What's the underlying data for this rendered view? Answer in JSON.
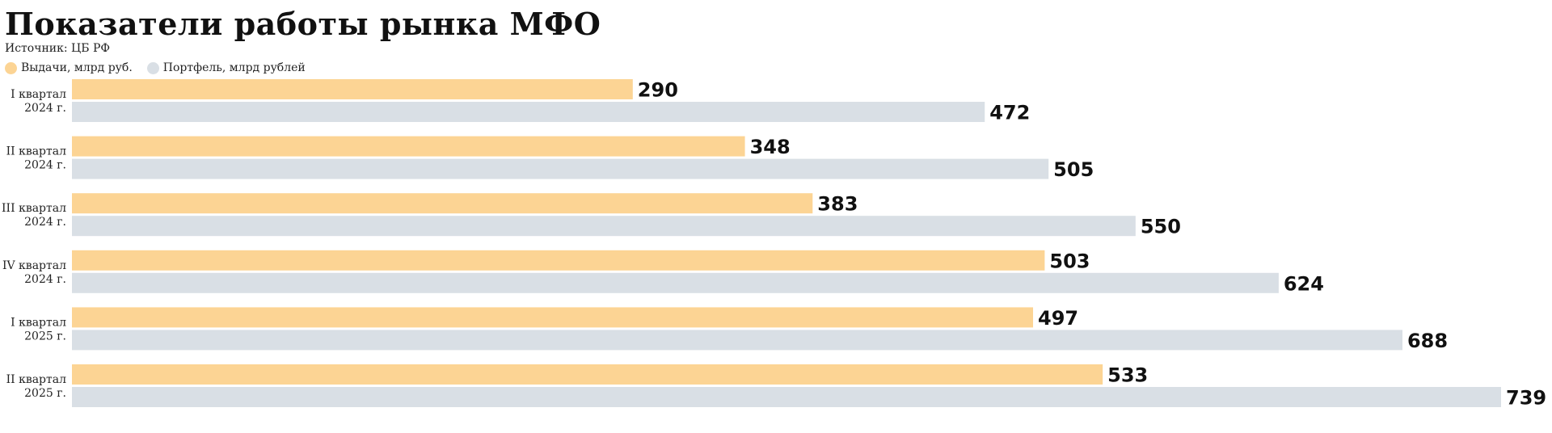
{
  "header": {
    "title": "Показатели работы рынка МФО",
    "source": "Источник: ЦБ РФ"
  },
  "legend": [
    {
      "label": "Выдачи, млрд руб.",
      "color": "#fcd494"
    },
    {
      "label": "Портфель, млрд рублей",
      "color": "#d9dfe5"
    }
  ],
  "chart_data": {
    "type": "bar",
    "orientation": "horizontal",
    "title": "Показатели работы рынка МФО",
    "subtitle": "Источник: ЦБ РФ",
    "legend_position": "top-left",
    "grid": false,
    "categories": [
      [
        "I квартал",
        "2024 г."
      ],
      [
        "II квартал",
        "2024 г."
      ],
      [
        "III квартал",
        "2024 г."
      ],
      [
        "IV квартал",
        "2024 г."
      ],
      [
        "I квартал",
        "2025 г."
      ],
      [
        "II квартал",
        "2025 г."
      ]
    ],
    "series": [
      {
        "name": "Выдачи, млрд руб.",
        "color": "#fcd494",
        "values": [
          290,
          348,
          383,
          503,
          497,
          533
        ]
      },
      {
        "name": "Портфель, млрд рублей",
        "color": "#d9dfe5",
        "values": [
          472,
          505,
          550,
          624,
          688,
          739
        ]
      }
    ],
    "xlim": [
      0,
      739
    ]
  }
}
